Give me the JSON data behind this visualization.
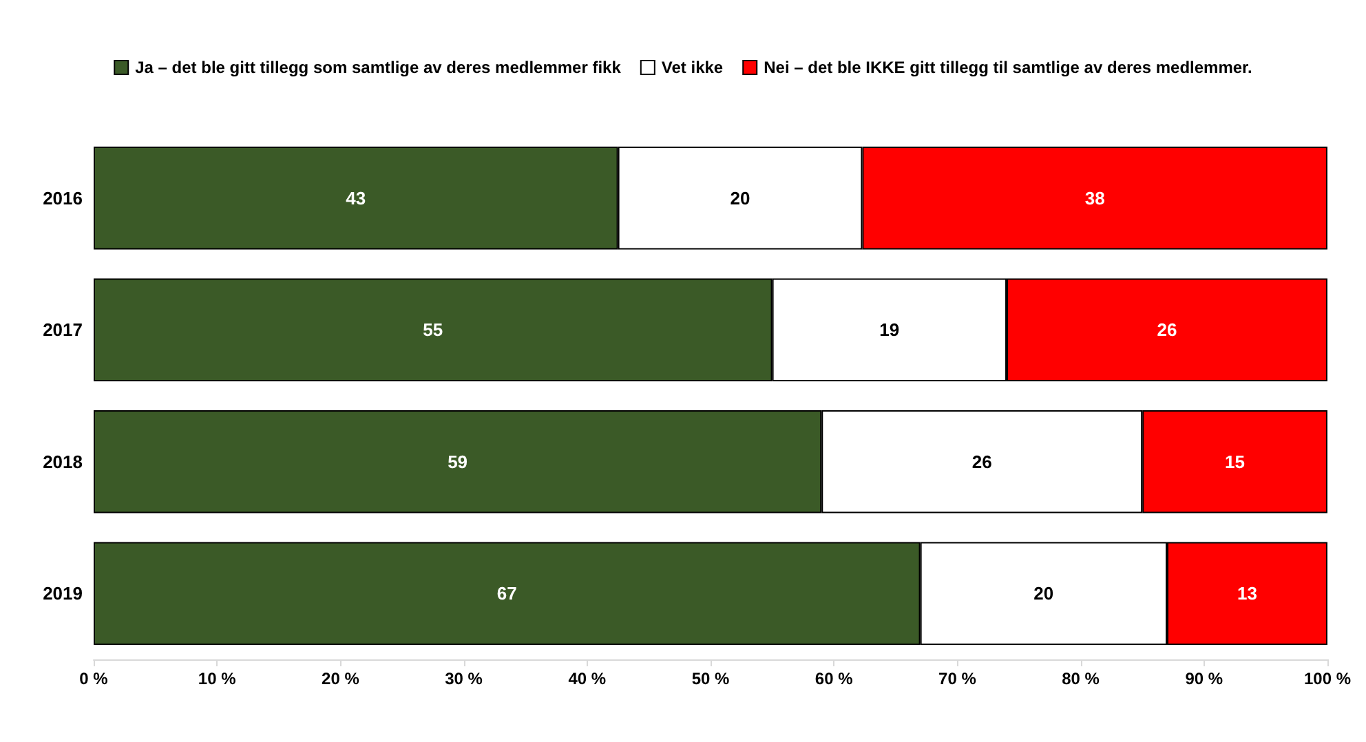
{
  "chart_data": {
    "type": "bar",
    "orientation": "horizontal",
    "stacked": true,
    "categories": [
      "2016",
      "2017",
      "2018",
      "2019"
    ],
    "series": [
      {
        "name": "Ja – det ble gitt tillegg som samtlige av deres medlemmer fikk",
        "color": "#3b5a27",
        "values": [
          42.5,
          55,
          59,
          67
        ],
        "value_labels": [
          "43",
          "55",
          "59",
          "67"
        ]
      },
      {
        "name": "Vet ikke",
        "color": "#ffffff",
        "values": [
          19.8,
          19,
          26,
          20
        ],
        "value_labels": [
          "20",
          "19",
          "26",
          "20"
        ]
      },
      {
        "name": "Nei – det ble IKKE gitt tillegg til samtlige av deres medlemmer.",
        "color": "#ff0000",
        "values": [
          37.7,
          26,
          15,
          13
        ],
        "value_labels": [
          "38",
          "26",
          "15",
          "13"
        ]
      }
    ],
    "xlim": [
      0,
      100
    ],
    "xticks": [
      {
        "value": 0,
        "label": "0 %"
      },
      {
        "value": 10,
        "label": "10 %"
      },
      {
        "value": 20,
        "label": "20 %"
      },
      {
        "value": 30,
        "label": "30 %"
      },
      {
        "value": 40,
        "label": "40 %"
      },
      {
        "value": 50,
        "label": "50 %"
      },
      {
        "value": 60,
        "label": "60 %"
      },
      {
        "value": 70,
        "label": "70 %"
      },
      {
        "value": 80,
        "label": "80 %"
      },
      {
        "value": 90,
        "label": "90 %"
      },
      {
        "value": 100,
        "label": "100 %"
      }
    ],
    "grid": false,
    "legend": "top"
  }
}
